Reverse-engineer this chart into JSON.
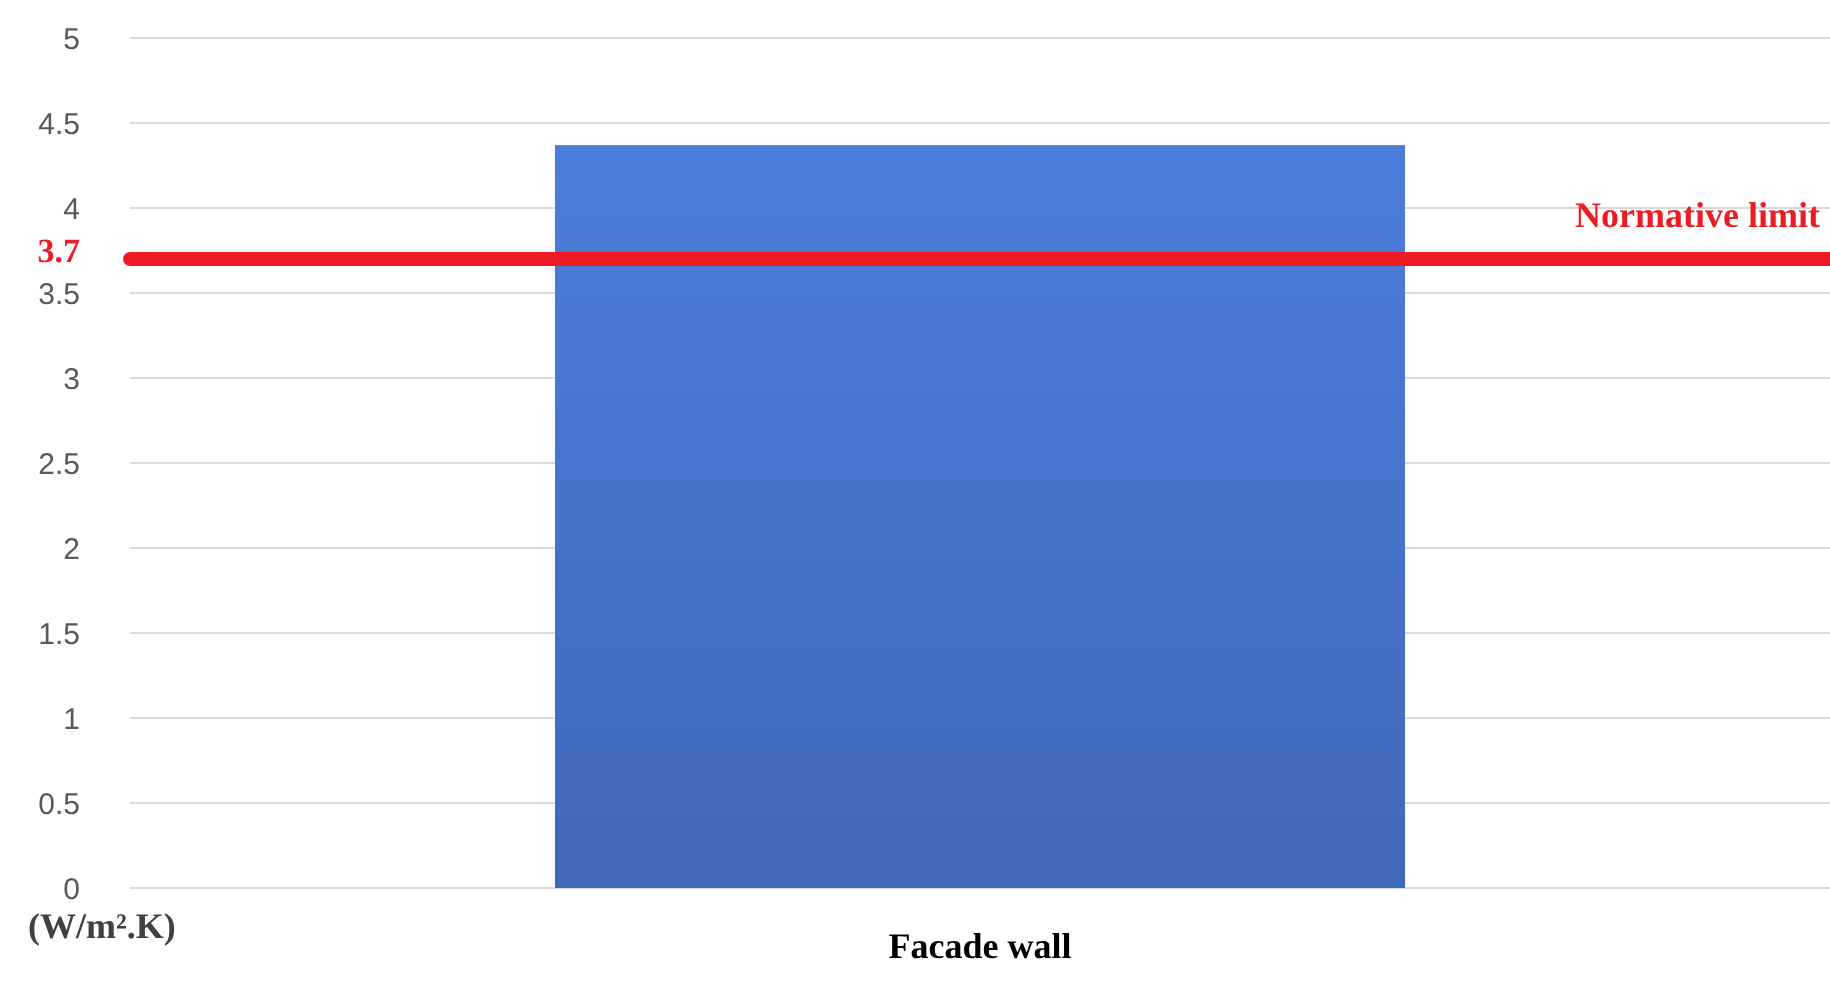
{
  "chart_data": {
    "type": "bar",
    "ylabel": "(W/m².K)",
    "categories": [
      "Facade wall"
    ],
    "values": [
      4.37
    ],
    "color": "#4570c6",
    "ylim": [
      0,
      5
    ],
    "yticks": [
      0,
      0.5,
      1,
      1.5,
      2,
      2.5,
      3,
      3.5,
      {
        "value": 3.7,
        "label": "3.7"
      },
      4,
      4.5,
      5
    ],
    "grid": "y",
    "ref_lines": [
      {
        "axis": "y",
        "value": 3.7,
        "label": "Normative limit",
        "color": "#ed1c24"
      }
    ]
  }
}
